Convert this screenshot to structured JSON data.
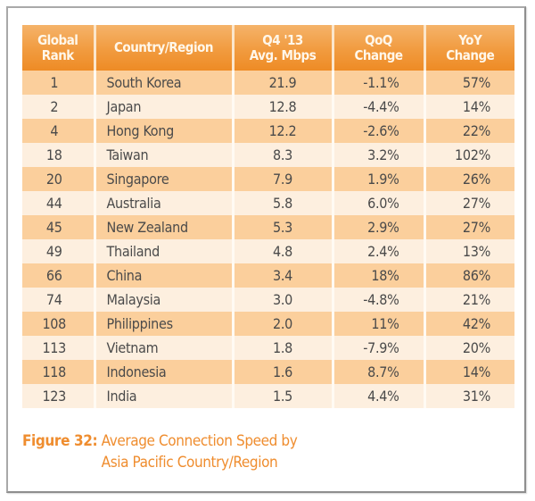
{
  "table": {
    "headers": [
      [
        "Global",
        "Rank"
      ],
      [
        "Country/Region"
      ],
      [
        "Q4 '13",
        "Avg. Mbps"
      ],
      [
        "QoQ",
        "Change"
      ],
      [
        "YoY",
        "Change"
      ]
    ],
    "rows": [
      {
        "rank": "1",
        "country": "South Korea",
        "mbps": "21.9",
        "qoq": "-1.1%",
        "yoy": "57%"
      },
      {
        "rank": "2",
        "country": "Japan",
        "mbps": "12.8",
        "qoq": "-4.4%",
        "yoy": "14%"
      },
      {
        "rank": "4",
        "country": "Hong Kong",
        "mbps": "12.2",
        "qoq": "-2.6%",
        "yoy": "22%"
      },
      {
        "rank": "18",
        "country": "Taiwan",
        "mbps": "8.3",
        "qoq": "3.2%",
        "yoy": "102%"
      },
      {
        "rank": "20",
        "country": "Singapore",
        "mbps": "7.9",
        "qoq": "1.9%",
        "yoy": "26%"
      },
      {
        "rank": "44",
        "country": "Australia",
        "mbps": "5.8",
        "qoq": "6.0%",
        "yoy": "27%"
      },
      {
        "rank": "45",
        "country": "New Zealand",
        "mbps": "5.3",
        "qoq": "2.9%",
        "yoy": "27%"
      },
      {
        "rank": "49",
        "country": "Thailand",
        "mbps": "4.8",
        "qoq": "2.4%",
        "yoy": "13%"
      },
      {
        "rank": "66",
        "country": "China",
        "mbps": "3.4",
        "qoq": "18%",
        "yoy": "86%"
      },
      {
        "rank": "74",
        "country": "Malaysia",
        "mbps": "3.0",
        "qoq": "-4.8%",
        "yoy": "21%"
      },
      {
        "rank": "108",
        "country": "Philippines",
        "mbps": "2.0",
        "qoq": "11%",
        "yoy": "42%"
      },
      {
        "rank": "113",
        "country": "Vietnam",
        "mbps": "1.8",
        "qoq": "-7.9%",
        "yoy": "20%"
      },
      {
        "rank": "118",
        "country": "Indonesia",
        "mbps": "1.6",
        "qoq": "8.7%",
        "yoy": "14%"
      },
      {
        "rank": "123",
        "country": "India",
        "mbps": "1.5",
        "qoq": "4.4%",
        "yoy": "31%"
      }
    ]
  },
  "caption": {
    "label": "Figure 32:",
    "text": "Average Connection Speed by Asia Pacific Country/Region"
  },
  "colors": {
    "header_orange": "#f19b3f",
    "row_odd": "#fbcf9c",
    "row_even": "#fdefdf",
    "caption_orange": "#ef8d2f",
    "text_gray": "#4a4a4a"
  },
  "chart_data": {
    "type": "table",
    "title": "Figure 32: Average Connection Speed by Asia Pacific Country/Region",
    "columns": [
      "Global Rank",
      "Country/Region",
      "Q4 '13 Avg. Mbps",
      "QoQ Change",
      "YoY Change"
    ],
    "rows": [
      [
        1,
        "South Korea",
        21.9,
        "-1.1%",
        "57%"
      ],
      [
        2,
        "Japan",
        12.8,
        "-4.4%",
        "14%"
      ],
      [
        4,
        "Hong Kong",
        12.2,
        "-2.6%",
        "22%"
      ],
      [
        18,
        "Taiwan",
        8.3,
        "3.2%",
        "102%"
      ],
      [
        20,
        "Singapore",
        7.9,
        "1.9%",
        "26%"
      ],
      [
        44,
        "Australia",
        5.8,
        "6.0%",
        "27%"
      ],
      [
        45,
        "New Zealand",
        5.3,
        "2.9%",
        "27%"
      ],
      [
        49,
        "Thailand",
        4.8,
        "2.4%",
        "13%"
      ],
      [
        66,
        "China",
        3.4,
        "18%",
        "86%"
      ],
      [
        74,
        "Malaysia",
        3.0,
        "-4.8%",
        "21%"
      ],
      [
        108,
        "Philippines",
        2.0,
        "11%",
        "42%"
      ],
      [
        113,
        "Vietnam",
        1.8,
        "-7.9%",
        "20%"
      ],
      [
        118,
        "Indonesia",
        1.6,
        "8.7%",
        "14%"
      ],
      [
        123,
        "India",
        1.5,
        "4.4%",
        "31%"
      ]
    ]
  }
}
